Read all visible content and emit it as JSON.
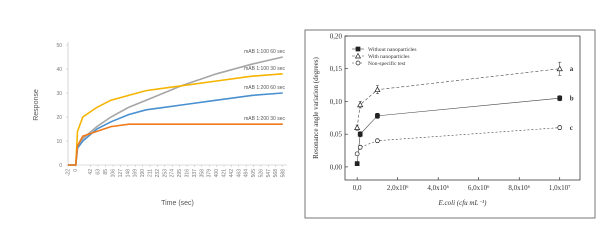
{
  "chart_data": [
    {
      "type": "line",
      "ylabel": "Response",
      "xlabel": "Time (sec)",
      "x": [
        -22,
        0,
        5,
        20,
        60,
        100,
        150,
        200,
        250,
        300,
        400,
        500,
        588
      ],
      "series": [
        {
          "name": "mAB 1:100  60 sec",
          "color": "#a6a6a6",
          "values": [
            0,
            0,
            8,
            11,
            16,
            20,
            24,
            27,
            30,
            33,
            38,
            42,
            45
          ]
        },
        {
          "name": "mAB 1:100  30 sec",
          "color": "#f5b400",
          "values": [
            0,
            0,
            14,
            20,
            24,
            27,
            29,
            31,
            32,
            33,
            35,
            37,
            38
          ]
        },
        {
          "name": "mAB 1:200  60 sec",
          "color": "#4a90d0",
          "values": [
            0,
            0,
            7,
            10,
            15,
            18,
            21,
            23,
            24,
            25,
            27,
            29,
            30
          ]
        },
        {
          "name": "mAB 1:200  30 sec",
          "color": "#f07a1a",
          "values": [
            0,
            0,
            8,
            12,
            14,
            16,
            17,
            17,
            17,
            17,
            17,
            17,
            17
          ]
        }
      ],
      "xlim": [
        -22,
        600
      ],
      "ylim": [
        0,
        50
      ],
      "yticks": [
        0,
        10,
        20,
        30,
        40,
        50
      ],
      "xticks": [
        -22,
        0,
        42,
        63,
        85,
        106,
        127,
        148,
        169,
        190,
        211,
        232,
        253,
        274,
        295,
        316,
        337,
        358,
        379,
        400,
        421,
        442,
        463,
        484,
        505,
        526,
        547,
        568,
        588
      ]
    },
    {
      "type": "errorscatter",
      "ylabel": "Resonance angle variation (degrees)",
      "xlabel": "E.coli (cfu mL⁻¹)",
      "x": [
        0,
        150000,
        1000000,
        10000000
      ],
      "series": [
        {
          "name": "Without nanoparticles",
          "marker": "square",
          "dash": "",
          "values": [
            0.005,
            0.05,
            0.078,
            0.105
          ],
          "errors": [
            0.003,
            0.004,
            0.004,
            0.004
          ],
          "tag": "b"
        },
        {
          "name": "With nanoparticles",
          "marker": "triangle",
          "dash": "3 2",
          "values": [
            0.06,
            0.095,
            0.118,
            0.15
          ],
          "errors": [
            0.004,
            0.005,
            0.006,
            0.01
          ],
          "tag": "a"
        },
        {
          "name": "Non-specific test",
          "marker": "circle",
          "dash": "2 2",
          "values": [
            0.02,
            0.03,
            0.04,
            0.06
          ],
          "errors": [
            0.002,
            0.003,
            0.003,
            0.003
          ],
          "tag": "c"
        }
      ],
      "xlim": [
        -600000,
        11000000
      ],
      "ylim": [
        -0.02,
        0.2
      ],
      "xticks": [
        {
          "value": 0,
          "label": "0,0"
        },
        {
          "value": 2000000,
          "label": "2,0x10⁶"
        },
        {
          "value": 4000000,
          "label": "4,0x10⁶"
        },
        {
          "value": 6000000,
          "label": "6,0x10⁶"
        },
        {
          "value": 8000000,
          "label": "8,0x10⁶"
        },
        {
          "value": 10000000,
          "label": "1,0x10⁷"
        }
      ],
      "yticks": [
        {
          "value": 0,
          "label": "0,00"
        },
        {
          "value": 0.05,
          "label": "0,05"
        },
        {
          "value": 0.1,
          "label": "0,10"
        },
        {
          "value": 0.15,
          "label": "0,15"
        },
        {
          "value": 0.2,
          "label": "0,20"
        }
      ]
    }
  ]
}
